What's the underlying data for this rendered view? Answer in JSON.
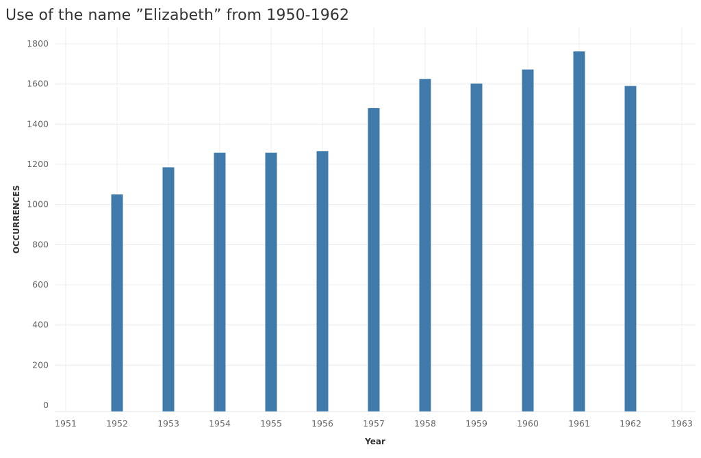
{
  "chart_data": {
    "type": "bar",
    "title": "Use of the name ”Elizabeth” from 1950-1962",
    "xlabel": "Year",
    "ylabel": "OCCURRENCES",
    "x_ticks": [
      "1951",
      "1952",
      "1953",
      "1954",
      "1955",
      "1956",
      "1957",
      "1958",
      "1959",
      "1960",
      "1961",
      "1962",
      "1963"
    ],
    "y_ticks": [
      0,
      200,
      400,
      600,
      800,
      1000,
      1200,
      1400,
      1600,
      1800
    ],
    "ylim": [
      0,
      1800
    ],
    "xlim": [
      1951,
      1963
    ],
    "categories": [
      "1952",
      "1953",
      "1954",
      "1955",
      "1956",
      "1957",
      "1958",
      "1959",
      "1960",
      "1961",
      "1962"
    ],
    "values": [
      1050,
      1185,
      1258,
      1258,
      1265,
      1480,
      1625,
      1602,
      1672,
      1762,
      1590
    ],
    "grid": true,
    "bar_color": "#3f7aaa",
    "grid_color": "#ececec"
  }
}
